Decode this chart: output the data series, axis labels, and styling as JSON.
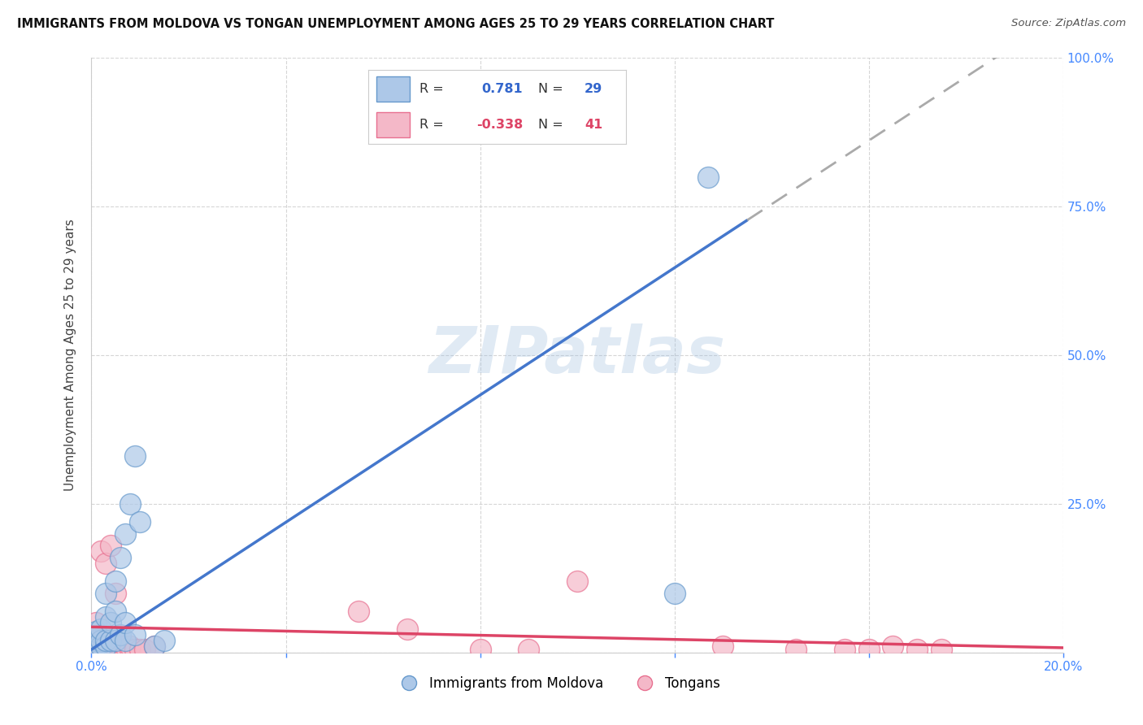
{
  "title": "IMMIGRANTS FROM MOLDOVA VS TONGAN UNEMPLOYMENT AMONG AGES 25 TO 29 YEARS CORRELATION CHART",
  "source": "Source: ZipAtlas.com",
  "ylabel": "Unemployment Among Ages 25 to 29 years",
  "xlim": [
    0.0,
    0.2
  ],
  "ylim": [
    0.0,
    1.0
  ],
  "xticks": [
    0.0,
    0.04,
    0.08,
    0.12,
    0.16,
    0.2
  ],
  "yticks": [
    0.0,
    0.25,
    0.5,
    0.75,
    1.0
  ],
  "blue_color": "#adc8e8",
  "blue_edge_color": "#6699cc",
  "pink_color": "#f4b8c8",
  "pink_edge_color": "#e87090",
  "blue_line_color": "#4477cc",
  "pink_line_color": "#dd4466",
  "legend_blue_R": "0.781",
  "legend_blue_N": "29",
  "legend_pink_R": "-0.338",
  "legend_pink_N": "41",
  "legend_label_blue": "Immigrants from Moldova",
  "legend_label_pink": "Tongans",
  "watermark": "ZIPatlas",
  "blue_x": [
    0.001,
    0.001,
    0.001,
    0.001,
    0.002,
    0.002,
    0.002,
    0.003,
    0.003,
    0.003,
    0.003,
    0.004,
    0.004,
    0.005,
    0.005,
    0.005,
    0.006,
    0.006,
    0.007,
    0.007,
    0.007,
    0.008,
    0.009,
    0.009,
    0.01,
    0.013,
    0.015,
    0.12,
    0.127
  ],
  "blue_y": [
    0.005,
    0.01,
    0.02,
    0.035,
    0.01,
    0.02,
    0.04,
    0.01,
    0.02,
    0.06,
    0.1,
    0.02,
    0.05,
    0.02,
    0.07,
    0.12,
    0.03,
    0.16,
    0.02,
    0.05,
    0.2,
    0.25,
    0.03,
    0.33,
    0.22,
    0.01,
    0.02,
    0.1,
    0.8
  ],
  "pink_x": [
    0.001,
    0.001,
    0.001,
    0.001,
    0.001,
    0.002,
    0.002,
    0.002,
    0.002,
    0.003,
    0.003,
    0.003,
    0.003,
    0.004,
    0.004,
    0.004,
    0.005,
    0.005,
    0.005,
    0.006,
    0.006,
    0.007,
    0.007,
    0.008,
    0.008,
    0.009,
    0.01,
    0.011,
    0.013,
    0.055,
    0.065,
    0.08,
    0.09,
    0.1,
    0.13,
    0.145,
    0.155,
    0.16,
    0.165,
    0.17,
    0.175
  ],
  "pink_y": [
    0.005,
    0.01,
    0.015,
    0.02,
    0.05,
    0.01,
    0.02,
    0.03,
    0.17,
    0.005,
    0.01,
    0.02,
    0.15,
    0.005,
    0.01,
    0.18,
    0.01,
    0.02,
    0.1,
    0.005,
    0.01,
    0.005,
    0.01,
    0.005,
    0.01,
    0.005,
    0.005,
    0.005,
    0.01,
    0.07,
    0.04,
    0.005,
    0.005,
    0.12,
    0.01,
    0.005,
    0.005,
    0.005,
    0.01,
    0.005,
    0.005
  ],
  "grid_color": "#cccccc",
  "background_color": "#ffffff",
  "tick_color": "#4488ff"
}
